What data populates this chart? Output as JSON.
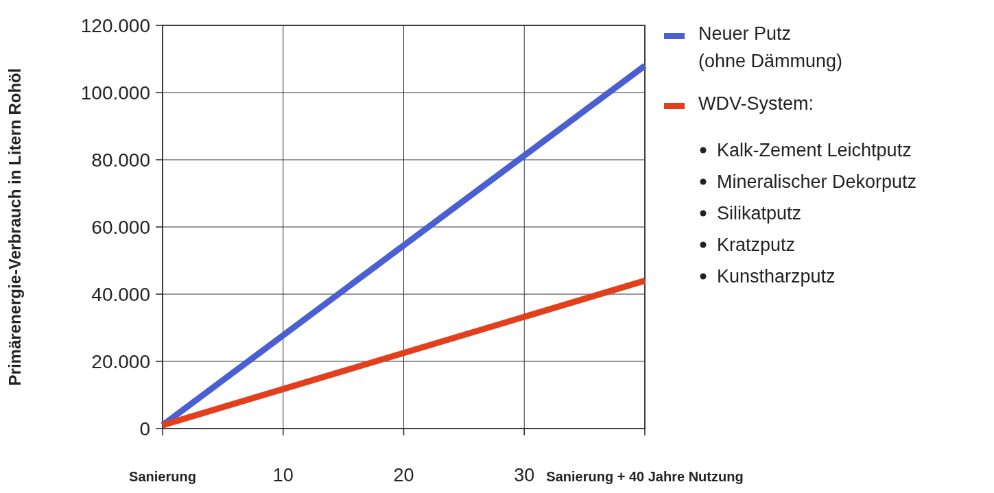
{
  "chart_data": {
    "type": "line",
    "ylabel": "Primärenergie-Verbrauch in Litern Rohöl",
    "x": [
      0,
      40
    ],
    "series": [
      {
        "name": "Neuer Putz\n(ohne Dämmung)",
        "color": "#4a5fd2",
        "values": [
          1000,
          108000
        ]
      },
      {
        "name": "WDV-System:",
        "color": "#e2401c",
        "values": [
          1000,
          44000
        ]
      }
    ],
    "annotations": [
      "Kalk-Zement Leichtputz",
      "Mineralischer Dekorputz",
      "Silikatputz",
      "Kratzputz",
      "Kunstharzputz"
    ],
    "xlim": [
      0,
      40
    ],
    "xticks": [
      {
        "value": 0,
        "label": "Sanierung"
      },
      10,
      20,
      30,
      {
        "value": 40,
        "label": "Sanierung + 40 Jahre Nutzung"
      }
    ],
    "ylim": [
      0,
      120000
    ],
    "yticks": [
      {
        "value": 0,
        "label": "0"
      },
      {
        "value": 20000,
        "label": "20.000"
      },
      {
        "value": 40000,
        "label": "40.000"
      },
      {
        "value": 60000,
        "label": "60.000"
      },
      {
        "value": 80000,
        "label": "80.000"
      },
      {
        "value": 100000,
        "label": "100.000"
      },
      {
        "value": 120000,
        "label": "120.000"
      }
    ],
    "grid": true,
    "legend": "right",
    "marker": "none",
    "line_style": "solid"
  }
}
